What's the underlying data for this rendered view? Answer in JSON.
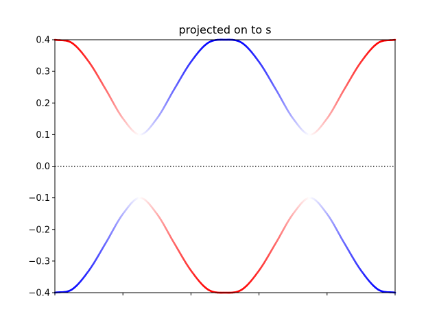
{
  "chart_data": {
    "type": "line",
    "title": "projected on to s",
    "xlabel": "",
    "ylabel": "",
    "xlim": [
      0,
      2
    ],
    "ylim": [
      -0.4,
      0.4
    ],
    "x_ticks": [
      0,
      0.4,
      0.8,
      1.2,
      1.6,
      2.0
    ],
    "x_tick_labels_shown": false,
    "y_ticks": [
      -0.4,
      -0.3,
      -0.2,
      -0.1,
      0.0,
      0.1,
      0.2,
      0.3,
      0.4
    ],
    "y_tick_labels": [
      "−0.4",
      "−0.3",
      "−0.2",
      "−0.1",
      "0.0",
      "0.1",
      "0.2",
      "0.3",
      "0.4"
    ],
    "reference_line": {
      "y": 0.0,
      "style": "dotted",
      "color": "#000000"
    },
    "grid": false,
    "colormap": {
      "negative": "#0000ff",
      "mid": "#ffffff",
      "positive": "#ff0000"
    },
    "series": [
      {
        "band": "upper",
        "x": [
          0,
          0.1,
          0.2,
          0.3,
          0.4,
          0.5,
          0.6,
          0.7,
          0.8,
          0.9,
          1.0,
          1.1,
          1.2,
          1.3,
          1.4,
          1.5,
          1.6,
          1.7,
          1.8,
          1.9,
          2.0
        ],
        "y": [
          0.4,
          0.39,
          0.33,
          0.242,
          0.151,
          0.1,
          0.151,
          0.242,
          0.33,
          0.39,
          0.4,
          0.39,
          0.33,
          0.242,
          0.151,
          0.1,
          0.151,
          0.242,
          0.33,
          0.39,
          0.4
        ],
        "projection": [
          1.0,
          0.97,
          0.8,
          0.58,
          0.3,
          0.0,
          -0.3,
          -0.58,
          -0.8,
          -0.97,
          -1.0,
          -0.97,
          -0.8,
          -0.58,
          -0.3,
          0.0,
          0.3,
          0.58,
          0.8,
          0.97,
          1.0
        ]
      },
      {
        "band": "lower",
        "x": [
          0,
          0.1,
          0.2,
          0.3,
          0.4,
          0.5,
          0.6,
          0.7,
          0.8,
          0.9,
          1.0,
          1.1,
          1.2,
          1.3,
          1.4,
          1.5,
          1.6,
          1.7,
          1.8,
          1.9,
          2.0
        ],
        "y": [
          -0.4,
          -0.39,
          -0.33,
          -0.242,
          -0.151,
          -0.1,
          -0.151,
          -0.242,
          -0.33,
          -0.39,
          -0.4,
          -0.39,
          -0.33,
          -0.242,
          -0.151,
          -0.1,
          -0.151,
          -0.242,
          -0.33,
          -0.39,
          -0.4
        ],
        "projection": [
          -1.0,
          -0.97,
          -0.8,
          -0.58,
          -0.3,
          0.0,
          0.3,
          0.58,
          0.8,
          0.97,
          1.0,
          0.97,
          0.8,
          0.58,
          0.3,
          0.0,
          -0.3,
          -0.58,
          -0.8,
          -0.97,
          -1.0
        ]
      }
    ]
  }
}
